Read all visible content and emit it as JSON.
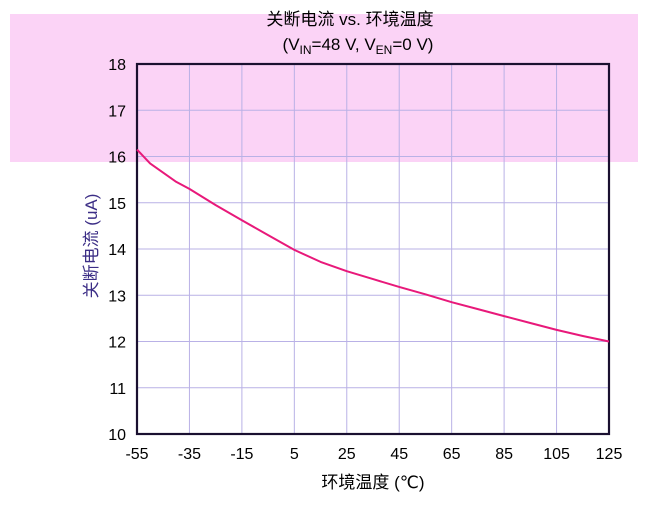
{
  "chart_data": {
    "type": "line",
    "title": "关断电流 vs. 环境温度",
    "subtitle": "(V_IN=48 V, V_EN=0 V)",
    "subtitle_parts": {
      "open": "(V",
      "vin_sub": "IN",
      "mid": "=48 V,  V",
      "ven_sub": "EN",
      "close": "=0 V)"
    },
    "xlabel": "环境温度 (℃)",
    "ylabel": "关断电流 (uA)",
    "xlim": [
      -55,
      125
    ],
    "ylim": [
      10,
      18
    ],
    "x_ticks": [
      -55,
      -35,
      -15,
      5,
      25,
      45,
      65,
      85,
      105,
      125
    ],
    "y_ticks": [
      10,
      11,
      12,
      13,
      14,
      15,
      16,
      17,
      18
    ],
    "grid": true,
    "series": [
      {
        "color": "#e8197a",
        "x": [
          -55,
          -50,
          -45,
          -40,
          -35,
          -25,
          -15,
          -5,
          5,
          15,
          25,
          35,
          45,
          55,
          65,
          75,
          85,
          95,
          105,
          115,
          125
        ],
        "y": [
          16.15,
          15.85,
          15.65,
          15.45,
          15.3,
          14.95,
          14.62,
          14.3,
          13.98,
          13.72,
          13.52,
          13.35,
          13.18,
          13.02,
          12.85,
          12.7,
          12.55,
          12.4,
          12.25,
          12.12,
          12.0
        ]
      }
    ]
  },
  "colors": {
    "plot_frame": "#1a1030",
    "grid": "#b9b1e6",
    "band": "#fbd3f6",
    "ylabel": "#3c2e86",
    "tick": "#000000"
  }
}
